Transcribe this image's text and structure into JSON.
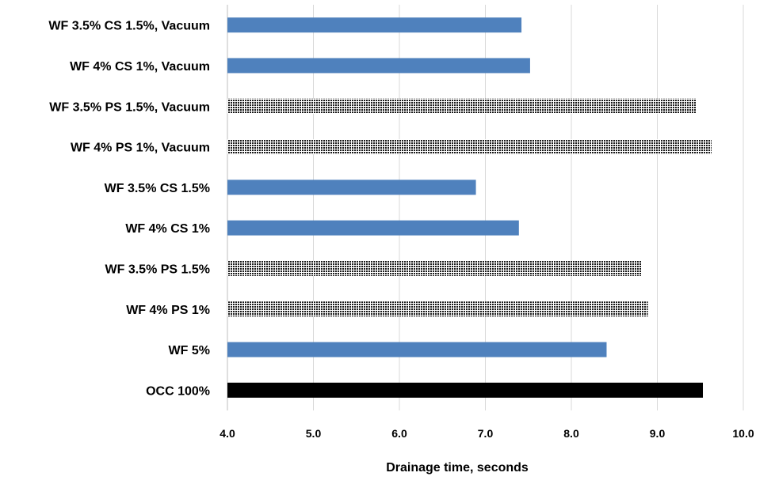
{
  "chart_data": {
    "type": "bar",
    "orientation": "horizontal",
    "title": "",
    "xlabel": "Drainage time, seconds",
    "ylabel": "",
    "xlim": [
      4.0,
      10.0
    ],
    "xticks": [
      "4.0",
      "5.0",
      "6.0",
      "7.0",
      "8.0",
      "9.0",
      "10.0"
    ],
    "grid": "vertical",
    "legend": "none",
    "categories": [
      "WF 3.5% CS 1.5%, Vacuum",
      "WF 4% CS 1%, Vacuum",
      "WF 3.5% PS 1.5%, Vacuum",
      "WF 4% PS 1%, Vacuum",
      "WF 3.5% CS 1.5%",
      "WF 4% CS 1%",
      "WF 3.5% PS 1.5%",
      "WF 4% PS 1%",
      "WF 5%",
      "OCC 100%"
    ],
    "values": [
      7.42,
      7.52,
      9.45,
      9.63,
      6.89,
      7.39,
      8.82,
      8.89,
      8.41,
      9.53
    ],
    "fills": [
      "blue",
      "blue",
      "dotted",
      "dotted",
      "blue",
      "blue",
      "dotted",
      "dotted",
      "blue",
      "black"
    ],
    "colors": {
      "blue": "#4f81bd",
      "dotted": "#1a1a1a",
      "black": "#000000",
      "grid": "#d9d9d9",
      "axis": "#bfbfbf"
    }
  }
}
